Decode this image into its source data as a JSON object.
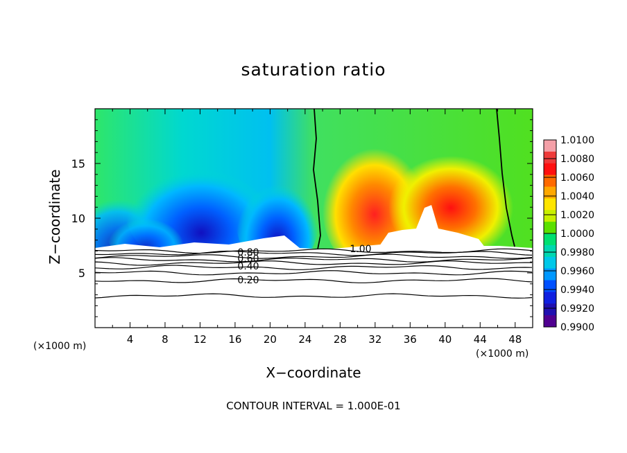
{
  "chart_data": {
    "type": "heatmap",
    "title": "saturation ratio",
    "xlabel": "X−coordinate",
    "ylabel": "Z−coordinate",
    "x_unit": "(×1000 m)",
    "x_range": [
      0,
      50
    ],
    "y_range": [
      0,
      20
    ],
    "x_ticks": [
      "4",
      "8",
      "12",
      "16",
      "20",
      "24",
      "28",
      "32",
      "36",
      "40",
      "44",
      "48"
    ],
    "y_ticks": [
      "5",
      "10",
      "15"
    ],
    "colorbar": {
      "ticks": [
        "1.0100",
        "1.0080",
        "1.0060",
        "1.0040",
        "1.0020",
        "1.0000",
        "0.9980",
        "0.9960",
        "0.9940",
        "0.9920",
        "0.9900"
      ],
      "range": [
        0.99,
        1.01
      ],
      "colors": [
        "#f4a0a8",
        "#ee3a3a",
        "#ff1010",
        "#ff6a00",
        "#ffa800",
        "#ffe500",
        "#c8f000",
        "#5ce000",
        "#00e070",
        "#00d8b0",
        "#00c8e8",
        "#0098ff",
        "#0050ff",
        "#1020e0",
        "#2010b0",
        "#500090"
      ]
    },
    "contour_labels": [
      "0.80",
      "0.60",
      "0.40",
      "0.20",
      "1.00"
    ],
    "contour_interval_note": "CONTOUR INTERVAL = 1.000E-01"
  }
}
